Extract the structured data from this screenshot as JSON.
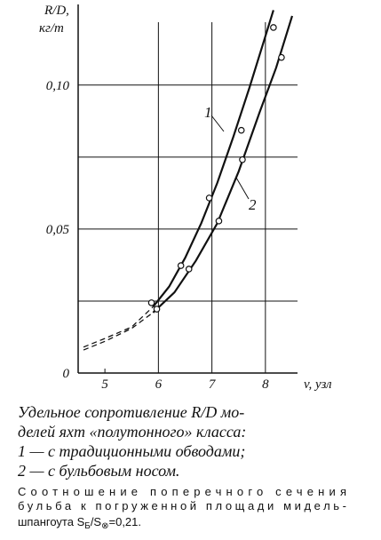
{
  "chart_data": {
    "type": "line",
    "y_label": [
      "R/D,",
      "кг/т"
    ],
    "x_label": "v, узл",
    "xlim": [
      4.5,
      8.6
    ],
    "ylim": [
      0,
      0.128
    ],
    "xticks": [
      5,
      6,
      7,
      8
    ],
    "yticks": [
      {
        "value": 0,
        "label": "0"
      },
      {
        "value": 0.05,
        "label": "0,05"
      },
      {
        "value": 0.1,
        "label": "0,10"
      }
    ],
    "minor_grid_y": [
      0.025,
      0.075
    ],
    "grid": true,
    "color": "#111111",
    "series": [
      {
        "name": "1",
        "x": [
          5.9,
          6.2,
          6.5,
          6.8,
          7.1,
          7.4,
          7.7,
          8.0,
          8.15
        ],
        "values": [
          0.023,
          0.03,
          0.04,
          0.052,
          0.066,
          0.082,
          0.099,
          0.117,
          0.126
        ],
        "dashed": false
      },
      {
        "name": "2",
        "x": [
          5.9,
          6.3,
          6.7,
          7.1,
          7.5,
          7.9,
          8.2,
          8.5
        ],
        "values": [
          0.021,
          0.028,
          0.039,
          0.052,
          0.07,
          0.091,
          0.106,
          0.124
        ],
        "dashed": false
      },
      {
        "x": [
          4.6,
          5.0,
          5.5,
          5.9
        ],
        "values": [
          0.009,
          0.012,
          0.016,
          0.023
        ],
        "dashed": true
      },
      {
        "x": [
          4.6,
          5.0,
          5.5,
          5.9
        ],
        "values": [
          0.008,
          0.011,
          0.0155,
          0.021
        ],
        "dashed": true
      }
    ],
    "points": {
      "x": [
        5.87,
        5.97,
        6.42,
        6.57,
        6.95,
        7.13,
        7.55,
        7.57,
        8.15,
        8.3
      ],
      "values": [
        0.0244,
        0.0222,
        0.0373,
        0.0361,
        0.0608,
        0.0528,
        0.0843,
        0.0741,
        0.12,
        0.1096
      ]
    },
    "caption": [
      "Удельное сопротивление R/D мо-",
      "делей яхт «полутонного» класса:",
      "1 — с традиционными обводами;",
      "2 — с бульбовым носом."
    ],
    "note": [
      "Соотношение поперечного сечения",
      "бульба к погруженной площади мидель-",
      "шпангоута S",
      "Б",
      "/S",
      "⊗",
      "=0,21."
    ]
  }
}
